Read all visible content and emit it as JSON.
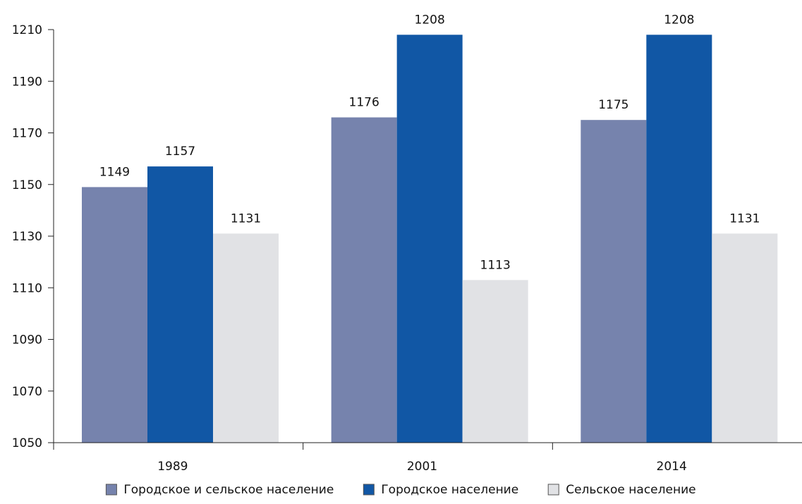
{
  "chart_data": {
    "type": "bar",
    "title": "",
    "xlabel": "",
    "ylabel": "",
    "categories": [
      "1989",
      "2001",
      "2014"
    ],
    "series": [
      {
        "name": "Городское и сельское население",
        "values": [
          1149,
          1176,
          1175
        ],
        "color": "#7683ad"
      },
      {
        "name": "Городское население",
        "values": [
          1157,
          1208,
          1208
        ],
        "color": "#1157a5"
      },
      {
        "name": "Сельское население",
        "values": [
          1131,
          1113,
          1131
        ],
        "color": "#e1e2e5"
      }
    ],
    "ylim": [
      1050,
      1210
    ],
    "yticks": [
      1050,
      1070,
      1090,
      1110,
      1130,
      1150,
      1170,
      1190,
      1210
    ],
    "grid": false,
    "legend_position": "bottom",
    "data_labels": true
  }
}
